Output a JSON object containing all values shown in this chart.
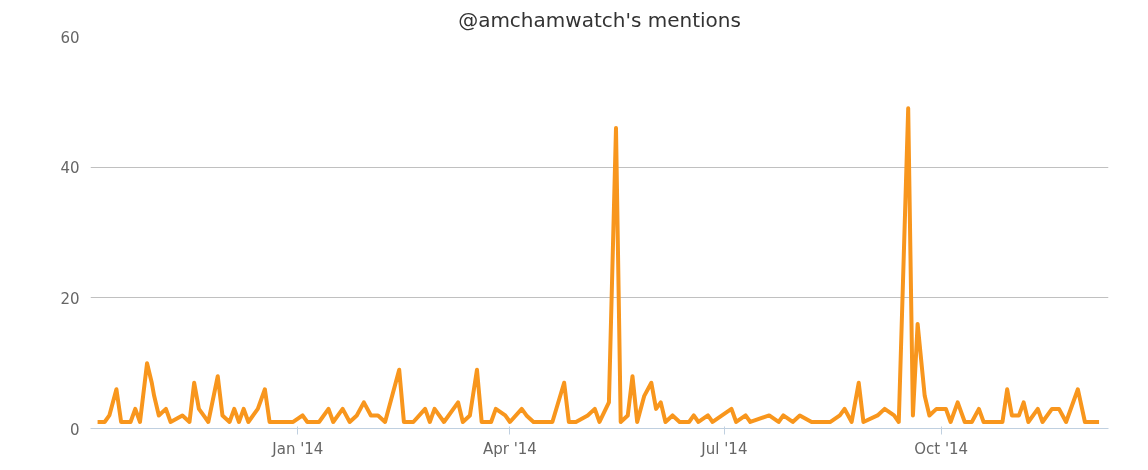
{
  "chart_data": {
    "type": "line",
    "title": "@amchamwatch's mentions",
    "x": [
      "2013-10-08",
      "2013-10-11",
      "2013-10-13",
      "2013-10-16",
      "2013-10-18",
      "2013-10-22",
      "2013-10-24",
      "2013-10-26",
      "2013-10-29",
      "2013-10-31",
      "2013-11-01",
      "2013-11-03",
      "2013-11-06",
      "2013-11-08",
      "2013-11-13",
      "2013-11-16",
      "2013-11-18",
      "2013-11-20",
      "2013-11-22",
      "2013-11-24",
      "2013-11-28",
      "2013-11-30",
      "2013-12-03",
      "2013-12-05",
      "2013-12-07",
      "2013-12-09",
      "2013-12-11",
      "2013-12-15",
      "2013-12-18",
      "2013-12-20",
      "2013-12-26",
      "2013-12-30",
      "2014-01-03",
      "2014-01-05",
      "2014-01-10",
      "2014-01-14",
      "2014-01-16",
      "2014-01-20",
      "2014-01-23",
      "2014-01-26",
      "2014-01-29",
      "2014-02-01",
      "2014-02-04",
      "2014-02-07",
      "2014-02-13",
      "2014-02-15",
      "2014-02-19",
      "2014-02-24",
      "2014-02-26",
      "2014-02-28",
      "2014-03-04",
      "2014-03-10",
      "2014-03-12",
      "2014-03-15",
      "2014-03-18",
      "2014-03-20",
      "2014-03-24",
      "2014-03-26",
      "2014-03-30",
      "2014-04-01",
      "2014-04-06",
      "2014-04-08",
      "2014-04-11",
      "2014-04-14",
      "2014-04-19",
      "2014-04-24",
      "2014-04-26",
      "2014-04-29",
      "2014-05-04",
      "2014-05-07",
      "2014-05-09",
      "2014-05-13",
      "2014-05-16",
      "2014-05-18",
      "2014-05-21",
      "2014-05-23",
      "2014-05-25",
      "2014-05-28",
      "2014-05-31",
      "2014-06-02",
      "2014-06-04",
      "2014-06-06",
      "2014-06-09",
      "2014-06-12",
      "2014-06-16",
      "2014-06-18",
      "2014-06-20",
      "2014-06-24",
      "2014-06-26",
      "2014-07-04",
      "2014-07-06",
      "2014-07-10",
      "2014-07-12",
      "2014-07-20",
      "2014-07-24",
      "2014-07-26",
      "2014-07-30",
      "2014-08-02",
      "2014-08-07",
      "2014-08-11",
      "2014-08-15",
      "2014-08-19",
      "2014-08-21",
      "2014-08-24",
      "2014-08-27",
      "2014-08-29",
      "2014-09-04",
      "2014-09-07",
      "2014-09-11",
      "2014-09-13",
      "2014-09-17",
      "2014-09-19",
      "2014-09-21",
      "2014-09-24",
      "2014-09-26",
      "2014-09-29",
      "2014-10-03",
      "2014-10-05",
      "2014-10-08",
      "2014-10-11",
      "2014-10-14",
      "2014-10-17",
      "2014-10-19",
      "2014-10-27",
      "2014-10-29",
      "2014-10-31",
      "2014-11-03",
      "2014-11-05",
      "2014-11-07",
      "2014-11-11",
      "2014-11-13",
      "2014-11-17",
      "2014-11-20",
      "2014-11-23",
      "2014-11-28",
      "2014-12-01",
      "2014-12-05",
      "2014-12-07"
    ],
    "series": [
      {
        "color": "#f8961d",
        "values": [
          1,
          1,
          2,
          6,
          1,
          1,
          3,
          1,
          10,
          7,
          5,
          2,
          3,
          1,
          2,
          1,
          7,
          3,
          2,
          1,
          8,
          2,
          1,
          3,
          1,
          3,
          1,
          3,
          6,
          1,
          1,
          1,
          2,
          1,
          1,
          3,
          1,
          3,
          1,
          2,
          4,
          2,
          2,
          1,
          9,
          1,
          1,
          3,
          1,
          3,
          1,
          4,
          1,
          2,
          9,
          1,
          1,
          3,
          2,
          1,
          3,
          2,
          1,
          1,
          1,
          7,
          1,
          1,
          2,
          3,
          1,
          4,
          46,
          1,
          2,
          8,
          1,
          5,
          7,
          3,
          4,
          1,
          2,
          1,
          1,
          2,
          1,
          2,
          1,
          3,
          1,
          2,
          1,
          2,
          1,
          2,
          1,
          2,
          1,
          1,
          1,
          2,
          3,
          1,
          7,
          1,
          2,
          3,
          2,
          1,
          49,
          2,
          16,
          5,
          2,
          3,
          3,
          1,
          4,
          1,
          1,
          3,
          1,
          1,
          6,
          2,
          2,
          4,
          1,
          3,
          1,
          3,
          3,
          1,
          6,
          1,
          1,
          1
        ]
      }
    ],
    "xlim": [
      "2013-10-05",
      "2014-12-11"
    ],
    "xticks": [
      {
        "value": "2014-01-01",
        "label": "Jan '14"
      },
      {
        "value": "2014-04-01",
        "label": "Apr '14"
      },
      {
        "value": "2014-07-01",
        "label": "Jul '14"
      },
      {
        "value": "2014-10-01",
        "label": "Oct '14"
      }
    ],
    "ylim": [
      0,
      60
    ],
    "yticks": [
      0,
      20,
      40,
      60
    ],
    "grid": "y",
    "marker": "none",
    "line_style": "solid"
  }
}
